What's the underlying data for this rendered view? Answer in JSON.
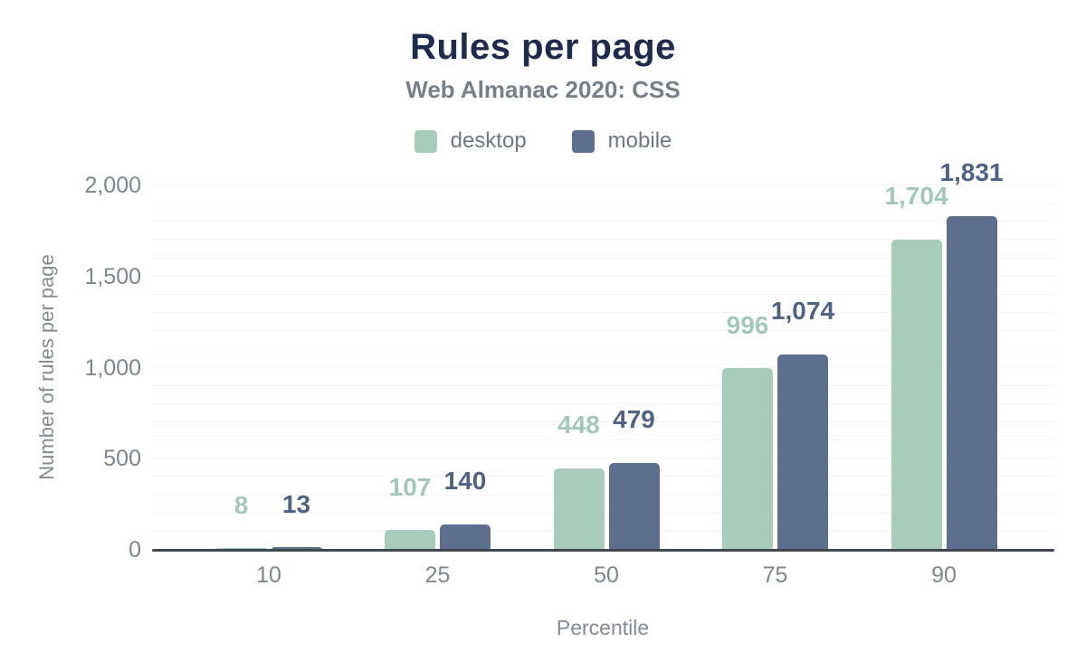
{
  "chart_data": {
    "type": "bar",
    "title": "Rules per page",
    "subtitle": "Web Almanac 2020: CSS",
    "xlabel": "Percentile",
    "ylabel": "Number of rules per page",
    "categories": [
      "10",
      "25",
      "50",
      "75",
      "90"
    ],
    "series": [
      {
        "name": "desktop",
        "color": "#a8ccbc",
        "label_color": "#a2c8b7",
        "values": [
          8,
          107,
          448,
          996,
          1704
        ],
        "labels": [
          "8",
          "107",
          "448",
          "996",
          "1,704"
        ]
      },
      {
        "name": "mobile",
        "color": "#5d6f8e",
        "label_color": "#4e6383",
        "values": [
          13,
          140,
          479,
          1074,
          1831
        ],
        "labels": [
          "13",
          "140",
          "479",
          "1,074",
          "1,831"
        ]
      }
    ],
    "ylim": [
      0,
      2000
    ],
    "yticks": [
      {
        "value": 0,
        "label": "0"
      },
      {
        "value": 500,
        "label": "500"
      },
      {
        "value": 1000,
        "label": "1,000"
      },
      {
        "value": 1500,
        "label": "1,500"
      },
      {
        "value": 2000,
        "label": "2,000"
      }
    ],
    "grid": "horizontal, minor every 100, major dotted every 500",
    "legend_position": "top"
  },
  "colors": {
    "title": "#1f2b4d",
    "subtitle": "#76808b",
    "axis_line": "#40474f",
    "tick_text": "#7d868f"
  }
}
